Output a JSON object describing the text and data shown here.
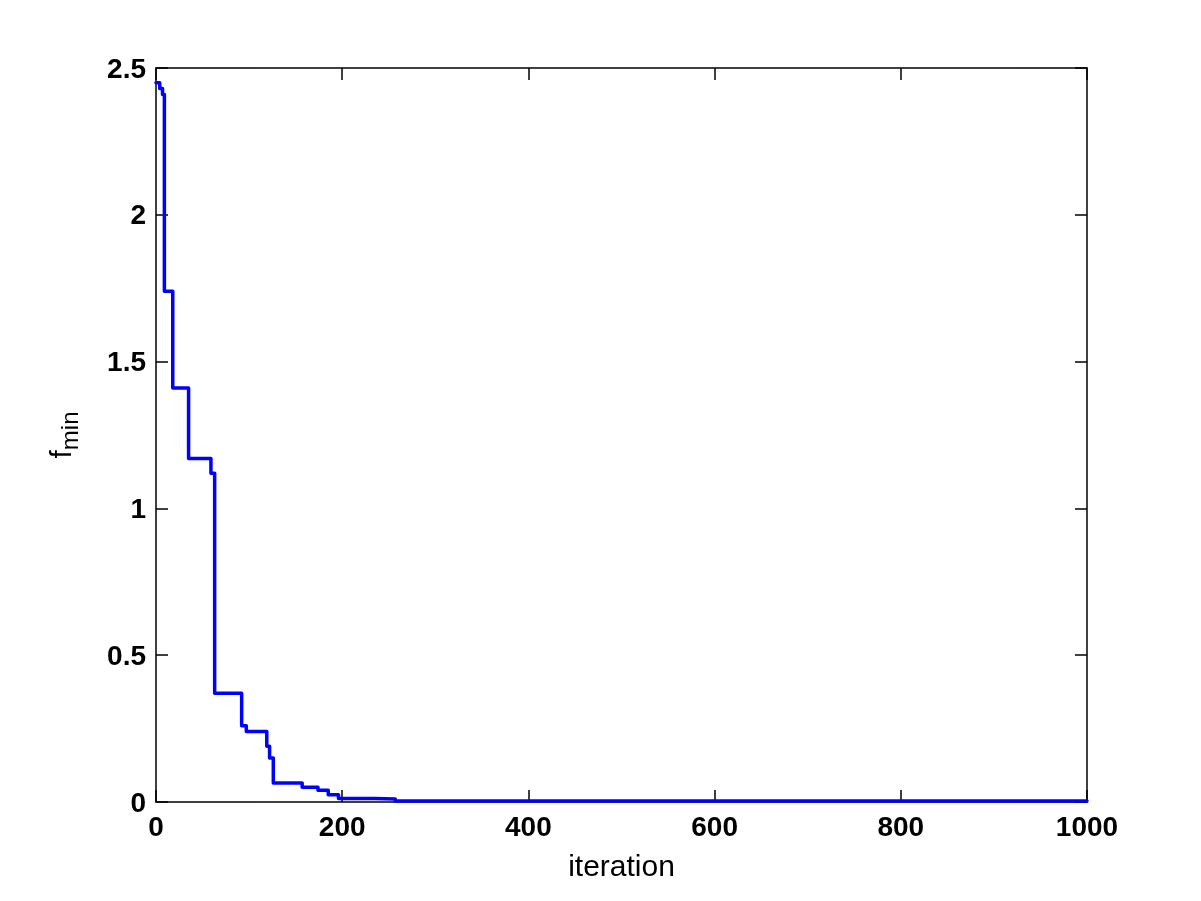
{
  "chart_data": {
    "type": "step",
    "xlabel": "iteration",
    "ylabel": "f$_{min}$",
    "series": [
      {
        "color": "#0000ff",
        "x": [
          0,
          4,
          7,
          9,
          18,
          35,
          59,
          63,
          92,
          97,
          119,
          122,
          126,
          157,
          174,
          185,
          196,
          235,
          257,
          1000
        ],
        "values": [
          2.45,
          2.43,
          2.41,
          1.74,
          1.41,
          1.17,
          1.12,
          0.37,
          0.26,
          0.24,
          0.19,
          0.15,
          0.065,
          0.05,
          0.04,
          0.025,
          0.012,
          0.01,
          0.003,
          0.003
        ]
      }
    ],
    "xlim": [
      0,
      1000
    ],
    "xticks": [
      0,
      200,
      400,
      600,
      800,
      1000
    ],
    "ylim": [
      0,
      2.5
    ],
    "yticks": [
      0,
      0.5,
      1,
      1.5,
      2,
      2.5
    ],
    "grid": false,
    "marker": "none",
    "line_style": "solid"
  }
}
